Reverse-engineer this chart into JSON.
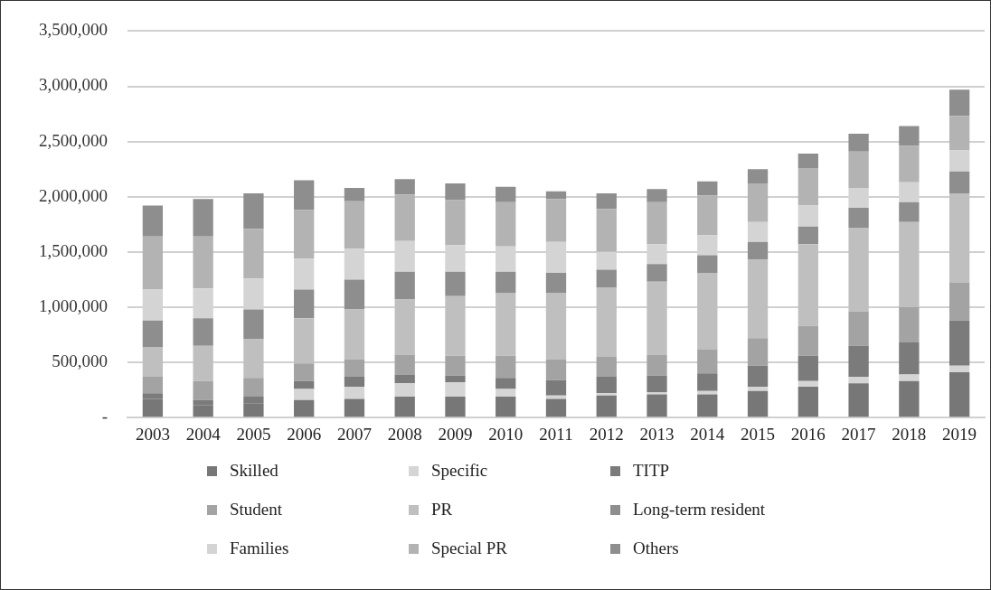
{
  "chart_data": {
    "type": "bar",
    "stacked": true,
    "grid": "y",
    "legend": "bottom",
    "categories": [
      "2003",
      "2004",
      "2005",
      "2006",
      "2007",
      "2008",
      "2009",
      "2010",
      "2011",
      "2012",
      "2013",
      "2014",
      "2015",
      "2016",
      "2017",
      "2018",
      "2019"
    ],
    "ylim": [
      0,
      3500000
    ],
    "yticks": [
      {
        "value": 0,
        "label": "-"
      },
      {
        "value": 500000,
        "label": "500,000"
      },
      {
        "value": 1000000,
        "label": "1,000,000"
      },
      {
        "value": 1500000,
        "label": "1,500,000"
      },
      {
        "value": 2000000,
        "label": "2,000,000"
      },
      {
        "value": 2500000,
        "label": "2,500,000"
      },
      {
        "value": 3000000,
        "label": "3,000,000"
      },
      {
        "value": 3500000,
        "label": "3,500,000"
      }
    ],
    "series": [
      {
        "name": "Skilled",
        "color": "#777777",
        "values": [
          170000,
          110000,
          130000,
          160000,
          170000,
          190000,
          190000,
          190000,
          170000,
          200000,
          210000,
          210000,
          240000,
          280000,
          310000,
          330000,
          410000
        ]
      },
      {
        "name": "Specific",
        "color": "#d5d5d5",
        "values": [
          0,
          0,
          0,
          100000,
          110000,
          120000,
          130000,
          70000,
          30000,
          20000,
          20000,
          30000,
          40000,
          50000,
          60000,
          60000,
          60000
        ]
      },
      {
        "name": "TITP",
        "color": "#7b7b7b",
        "values": [
          50000,
          50000,
          60000,
          70000,
          90000,
          80000,
          60000,
          100000,
          140000,
          150000,
          150000,
          160000,
          190000,
          230000,
          280000,
          290000,
          410000
        ]
      },
      {
        "name": "Student",
        "color": "#a3a3a3",
        "values": [
          150000,
          170000,
          170000,
          160000,
          160000,
          180000,
          180000,
          200000,
          190000,
          180000,
          190000,
          220000,
          250000,
          270000,
          310000,
          320000,
          340000
        ]
      },
      {
        "name": "PR",
        "color": "#bfbfbf",
        "values": [
          270000,
          320000,
          350000,
          410000,
          450000,
          500000,
          540000,
          570000,
          600000,
          630000,
          660000,
          690000,
          710000,
          740000,
          760000,
          770000,
          810000
        ]
      },
      {
        "name": "Long-term resident",
        "color": "#8e8e8e",
        "values": [
          240000,
          250000,
          270000,
          260000,
          270000,
          250000,
          220000,
          190000,
          180000,
          160000,
          160000,
          160000,
          160000,
          160000,
          180000,
          180000,
          200000
        ]
      },
      {
        "name": "Families",
        "color": "#d4d4d4",
        "values": [
          280000,
          270000,
          280000,
          280000,
          280000,
          280000,
          240000,
          230000,
          280000,
          160000,
          180000,
          180000,
          180000,
          190000,
          180000,
          180000,
          190000
        ]
      },
      {
        "name": "Special PR",
        "color": "#b3b3b3",
        "values": [
          480000,
          470000,
          450000,
          440000,
          430000,
          420000,
          410000,
          400000,
          390000,
          390000,
          380000,
          360000,
          350000,
          340000,
          330000,
          330000,
          310000
        ]
      },
      {
        "name": "Others",
        "color": "#8e8e8e",
        "values": [
          280000,
          340000,
          320000,
          270000,
          120000,
          140000,
          150000,
          140000,
          70000,
          140000,
          120000,
          130000,
          130000,
          130000,
          160000,
          180000,
          240000
        ]
      }
    ]
  }
}
